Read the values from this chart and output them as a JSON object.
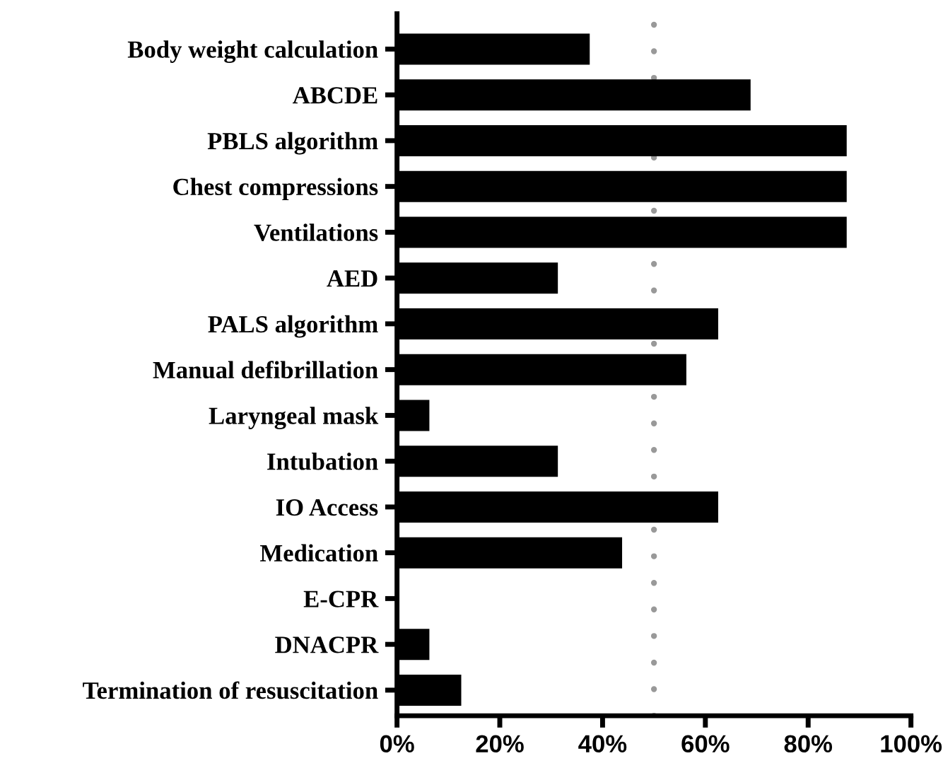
{
  "chart_data": {
    "type": "bar",
    "orientation": "horizontal",
    "categories": [
      "Body weight calculation",
      "ABCDE",
      "PBLS algorithm",
      "Chest compressions",
      "Ventilations",
      "AED",
      "PALS algorithm",
      "Manual defibrillation",
      "Laryngeal mask",
      "Intubation",
      "IO Access",
      "Medication",
      "E-CPR",
      "DNACPR",
      "Termination of resuscitation"
    ],
    "values": [
      37.5,
      68.8,
      87.5,
      87.5,
      87.5,
      31.3,
      62.5,
      56.3,
      6.3,
      31.3,
      62.5,
      43.8,
      0,
      6.3,
      12.5
    ],
    "color": "#000000",
    "xlim": [
      0,
      100
    ],
    "xticks": [
      {
        "value": 0,
        "label": "0%"
      },
      {
        "value": 20,
        "label": "20%"
      },
      {
        "value": 40,
        "label": "40%"
      },
      {
        "value": 60,
        "label": "60%"
      },
      {
        "value": 80,
        "label": "80%"
      },
      {
        "value": 100,
        "label": "100%"
      }
    ],
    "ref_lines": [
      {
        "axis": "x",
        "value": 50,
        "label": null,
        "color": "#999999",
        "line_style": "dotted"
      }
    ],
    "grid": false,
    "legend": false
  }
}
